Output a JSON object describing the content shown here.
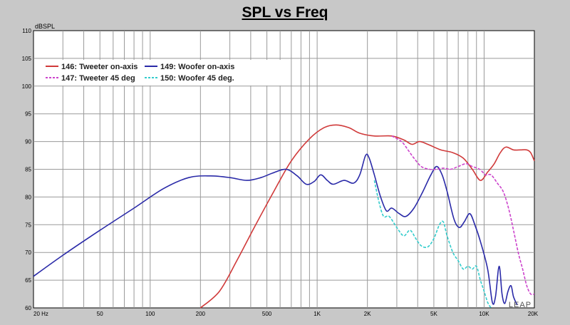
{
  "chart_data": {
    "type": "line",
    "title": "SPL vs Freq",
    "ylabel": "dBSPL",
    "xlabel": "",
    "x_scale": "log",
    "xlim": [
      20,
      20000
    ],
    "ylim": [
      60,
      110
    ],
    "grid": true,
    "legend_position": "top-left",
    "x_ticks": [
      {
        "value": 20,
        "label": "20 Hz"
      },
      {
        "value": 50,
        "label": "50"
      },
      {
        "value": 100,
        "label": "100"
      },
      {
        "value": 200,
        "label": "200"
      },
      {
        "value": 500,
        "label": "500"
      },
      {
        "value": 1000,
        "label": "1K"
      },
      {
        "value": 2000,
        "label": "2K"
      },
      {
        "value": 5000,
        "label": "5K"
      },
      {
        "value": 10000,
        "label": "10K"
      },
      {
        "value": 20000,
        "label": "20K"
      }
    ],
    "y_ticks": [
      60,
      65,
      70,
      75,
      80,
      85,
      90,
      95,
      100,
      105,
      110
    ],
    "watermark": "LEAP",
    "series": [
      {
        "name": "146: Tweeter on-axis",
        "color": "#d03a3a",
        "dash": "solid",
        "points": [
          [
            200,
            60
          ],
          [
            260,
            63
          ],
          [
            330,
            68.5
          ],
          [
            420,
            74.5
          ],
          [
            550,
            81
          ],
          [
            700,
            86.5
          ],
          [
            900,
            90.5
          ],
          [
            1100,
            92.5
          ],
          [
            1300,
            93
          ],
          [
            1550,
            92.5
          ],
          [
            1800,
            91.5
          ],
          [
            2200,
            91
          ],
          [
            2800,
            91
          ],
          [
            3300,
            90.3
          ],
          [
            3700,
            89.5
          ],
          [
            4100,
            90
          ],
          [
            4600,
            89.5
          ],
          [
            5500,
            88.5
          ],
          [
            6500,
            88
          ],
          [
            7500,
            87
          ],
          [
            8500,
            85
          ],
          [
            9500,
            83
          ],
          [
            10500,
            84.5
          ],
          [
            11500,
            86
          ],
          [
            12500,
            88
          ],
          [
            13500,
            89
          ],
          [
            15000,
            88.5
          ],
          [
            16500,
            88.5
          ],
          [
            18000,
            88.5
          ],
          [
            19000,
            88
          ],
          [
            20000,
            86.5
          ]
        ]
      },
      {
        "name": "149: Woofer on-axis",
        "color": "#2a2aa8",
        "dash": "solid",
        "points": [
          [
            20,
            65.7
          ],
          [
            30,
            69.5
          ],
          [
            50,
            74
          ],
          [
            80,
            78
          ],
          [
            120,
            81.5
          ],
          [
            170,
            83.5
          ],
          [
            230,
            83.8
          ],
          [
            300,
            83.5
          ],
          [
            380,
            83
          ],
          [
            460,
            83.5
          ],
          [
            540,
            84.3
          ],
          [
            650,
            85
          ],
          [
            760,
            83.8
          ],
          [
            860,
            82.3
          ],
          [
            960,
            82.8
          ],
          [
            1050,
            84
          ],
          [
            1150,
            83
          ],
          [
            1250,
            82.3
          ],
          [
            1450,
            83
          ],
          [
            1650,
            82.5
          ],
          [
            1800,
            84
          ],
          [
            1950,
            87.5
          ],
          [
            2050,
            87
          ],
          [
            2200,
            84
          ],
          [
            2400,
            80
          ],
          [
            2600,
            77.5
          ],
          [
            2800,
            78
          ],
          [
            3100,
            77
          ],
          [
            3400,
            76.5
          ],
          [
            3800,
            78
          ],
          [
            4300,
            81
          ],
          [
            4800,
            84
          ],
          [
            5200,
            85.5
          ],
          [
            5600,
            84
          ],
          [
            6000,
            81
          ],
          [
            6600,
            76
          ],
          [
            7100,
            74.5
          ],
          [
            7600,
            75.5
          ],
          [
            8200,
            77
          ],
          [
            8800,
            75
          ],
          [
            9500,
            72
          ],
          [
            10500,
            67
          ],
          [
            11200,
            61
          ],
          [
            11700,
            62
          ],
          [
            12300,
            67.5
          ],
          [
            12800,
            62.5
          ],
          [
            13300,
            60.8
          ],
          [
            13900,
            63
          ],
          [
            14500,
            64
          ],
          [
            15000,
            62
          ],
          [
            15800,
            60.5
          ]
        ]
      },
      {
        "name": "147: Tweeter 45 deg",
        "color": "#cc44cc",
        "dash": "dashed",
        "points": [
          [
            2800,
            91
          ],
          [
            3200,
            90
          ],
          [
            3500,
            88.5
          ],
          [
            3800,
            87
          ],
          [
            4200,
            85.5
          ],
          [
            4700,
            85
          ],
          [
            5200,
            85
          ],
          [
            5700,
            85.2
          ],
          [
            6300,
            85
          ],
          [
            7000,
            85.5
          ],
          [
            7800,
            86
          ],
          [
            8500,
            85.5
          ],
          [
            9400,
            85
          ],
          [
            10200,
            84
          ],
          [
            11000,
            84
          ],
          [
            12000,
            82.5
          ],
          [
            13000,
            81
          ],
          [
            14000,
            78
          ],
          [
            15000,
            74
          ],
          [
            16000,
            70
          ],
          [
            17000,
            67
          ],
          [
            18000,
            64
          ],
          [
            19000,
            62.5
          ],
          [
            20000,
            62.5
          ]
        ]
      },
      {
        "name": "150: Woofer 45 deg.",
        "color": "#33cccc",
        "dash": "dashed",
        "points": [
          [
            2200,
            83
          ],
          [
            2350,
            79
          ],
          [
            2500,
            76.5
          ],
          [
            2700,
            76.5
          ],
          [
            3000,
            74.5
          ],
          [
            3300,
            73
          ],
          [
            3600,
            74
          ],
          [
            3900,
            72.5
          ],
          [
            4200,
            71.2
          ],
          [
            4600,
            71
          ],
          [
            5000,
            72.5
          ],
          [
            5400,
            75
          ],
          [
            5700,
            75.5
          ],
          [
            6000,
            73
          ],
          [
            6500,
            70
          ],
          [
            7000,
            68.5
          ],
          [
            7500,
            67
          ],
          [
            8000,
            67.5
          ],
          [
            8500,
            67
          ],
          [
            9000,
            67.5
          ],
          [
            9500,
            65
          ],
          [
            10000,
            63
          ],
          [
            10500,
            61
          ],
          [
            11000,
            60
          ]
        ]
      }
    ]
  }
}
